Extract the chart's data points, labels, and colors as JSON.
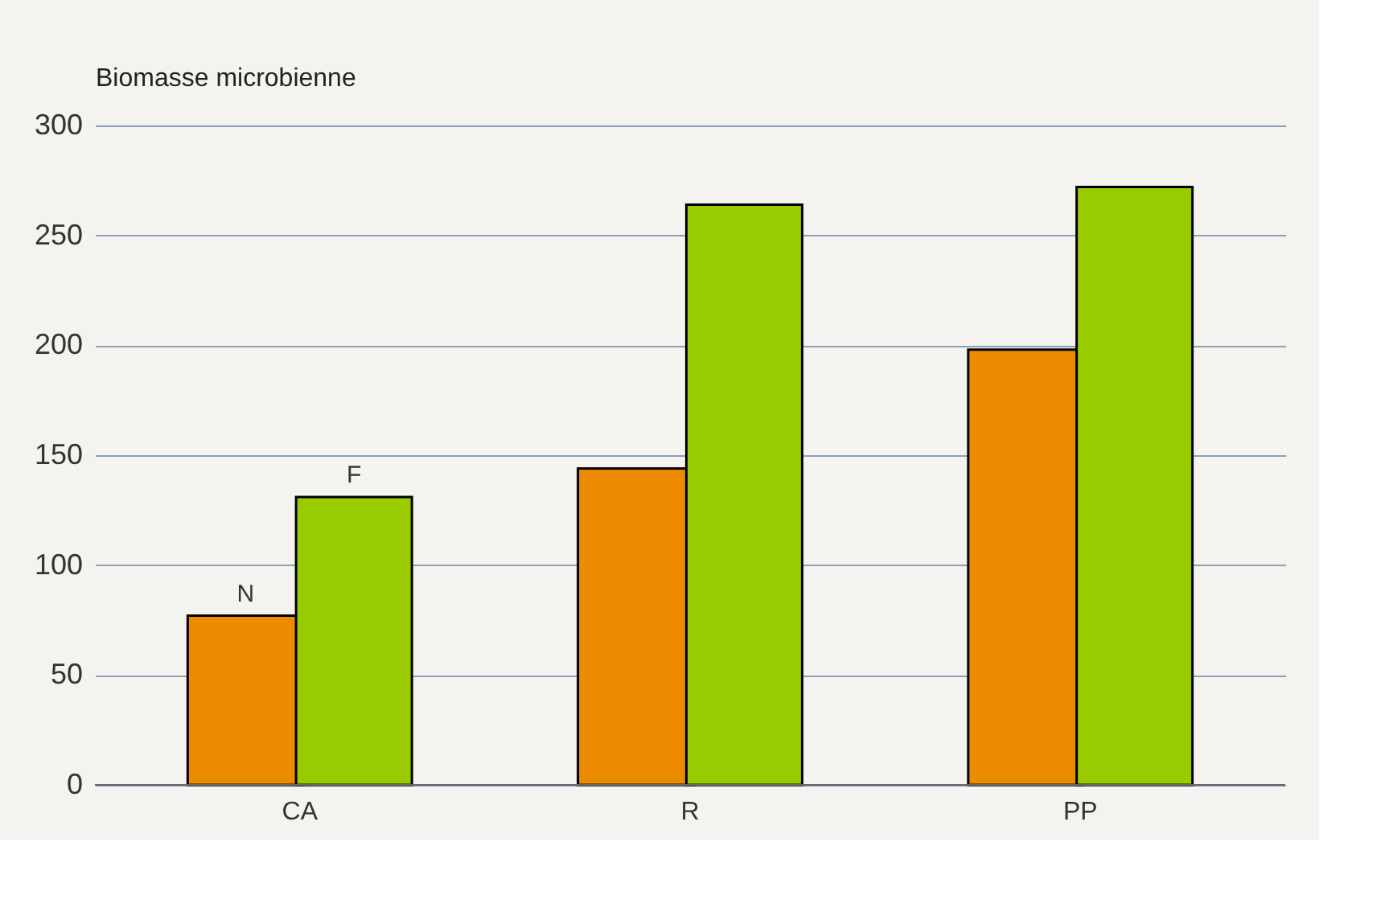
{
  "chart_data": {
    "type": "bar",
    "ylabel": "Biomasse microbienne",
    "categories": [
      "CA",
      "R",
      "PP"
    ],
    "series": [
      {
        "name": "N",
        "color": "#ec8a00",
        "values": [
          77,
          144,
          198
        ]
      },
      {
        "name": "F",
        "color": "#99cc00",
        "values": [
          131,
          264,
          272
        ]
      }
    ],
    "ylim": [
      0,
      300
    ],
    "yticks": [
      0,
      50,
      100,
      150,
      200,
      250,
      300
    ],
    "grid": "y",
    "legend": false
  }
}
